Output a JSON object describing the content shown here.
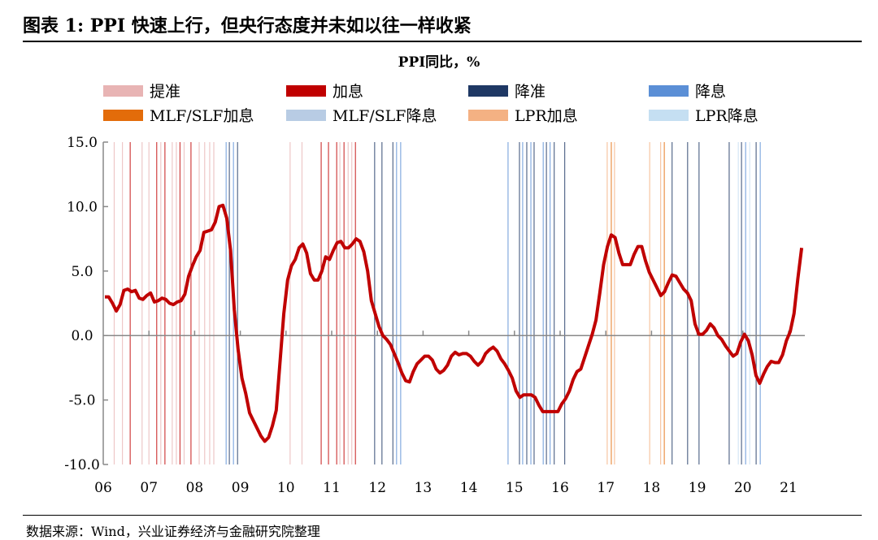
{
  "title": "图表 1:  PPI 快速上行，但央行态度并未如以往一样收紧",
  "source": "数据来源：Wind，兴业证券经济与金融研究院整理",
  "chart_data": {
    "type": "line",
    "title": "PPI同比，%",
    "xlabel": "",
    "ylabel": "",
    "ylim": [
      -10,
      15
    ],
    "yticks": [
      "15.0",
      "10.0",
      "5.0",
      "0.0",
      "-5.0",
      "-10.0"
    ],
    "ytick_values": [
      15,
      10,
      5,
      0,
      -5,
      -10
    ],
    "xticks": [
      "06",
      "07",
      "08",
      "09",
      "10",
      "11",
      "12",
      "13",
      "14",
      "15",
      "16",
      "17",
      "18",
      "19",
      "20",
      "21"
    ],
    "x_start": "2006-01",
    "series": [
      {
        "name": "PPI同比",
        "color": "#c00000",
        "values": [
          3.0,
          3.0,
          2.5,
          1.9,
          2.4,
          3.5,
          3.6,
          3.4,
          3.5,
          2.9,
          2.8,
          3.1,
          3.3,
          2.6,
          2.7,
          2.9,
          2.8,
          2.5,
          2.4,
          2.6,
          2.7,
          3.2,
          4.6,
          5.4,
          6.1,
          6.6,
          8.0,
          8.1,
          8.2,
          8.8,
          10.0,
          10.1,
          9.1,
          6.6,
          2.0,
          -1.1,
          -3.3,
          -4.5,
          -6.0,
          -6.6,
          -7.2,
          -7.8,
          -8.2,
          -7.9,
          -7.0,
          -5.8,
          -2.1,
          1.7,
          4.3,
          5.4,
          5.9,
          6.8,
          7.1,
          6.4,
          4.8,
          4.3,
          4.3,
          5.0,
          6.1,
          5.9,
          6.6,
          7.2,
          7.3,
          6.8,
          6.8,
          7.1,
          7.5,
          7.3,
          6.5,
          5.0,
          2.7,
          1.7,
          0.7,
          0.0,
          -0.3,
          -0.7,
          -1.4,
          -2.1,
          -2.9,
          -3.5,
          -3.6,
          -2.8,
          -2.2,
          -1.9,
          -1.6,
          -1.6,
          -1.9,
          -2.6,
          -2.9,
          -2.7,
          -2.3,
          -1.6,
          -1.3,
          -1.5,
          -1.4,
          -1.4,
          -1.6,
          -2.0,
          -2.3,
          -2.0,
          -1.4,
          -1.1,
          -0.9,
          -1.2,
          -1.8,
          -2.2,
          -2.7,
          -3.3,
          -4.3,
          -4.8,
          -4.6,
          -4.6,
          -4.6,
          -4.8,
          -5.4,
          -5.9,
          -5.9,
          -5.9,
          -5.9,
          -5.9,
          -5.3,
          -4.9,
          -4.3,
          -3.4,
          -2.8,
          -2.6,
          -1.7,
          -0.8,
          0.1,
          1.2,
          3.3,
          5.5,
          6.9,
          7.8,
          7.6,
          6.4,
          5.5,
          5.5,
          5.5,
          6.3,
          6.9,
          6.9,
          5.8,
          4.9,
          4.3,
          3.7,
          3.1,
          3.4,
          4.1,
          4.7,
          4.6,
          4.1,
          3.6,
          3.3,
          2.7,
          0.9,
          0.1,
          0.1,
          0.4,
          0.9,
          0.6,
          0.0,
          -0.3,
          -0.8,
          -1.2,
          -1.6,
          -1.4,
          -0.5,
          0.1,
          -0.4,
          -1.5,
          -3.1,
          -3.7,
          -3.0,
          -2.4,
          -2.0,
          -2.1,
          -2.1,
          -1.5,
          -0.4,
          0.3,
          1.7,
          4.4,
          6.8
        ]
      }
    ],
    "legend": [
      {
        "key": "rrr_up",
        "label": "提准",
        "color": "#e8b4b4"
      },
      {
        "key": "rate_up",
        "label": "加息",
        "color": "#c00000"
      },
      {
        "key": "rrr_down",
        "label": "降准",
        "color": "#1f3864"
      },
      {
        "key": "rate_down",
        "label": "降息",
        "color": "#5b8fd6"
      },
      {
        "key": "mlf_up",
        "label": "MLF/SLF加息",
        "color": "#e36c0a"
      },
      {
        "key": "mlf_down",
        "label": "MLF/SLF降息",
        "color": "#b8cce4"
      },
      {
        "key": "lpr_up",
        "label": "LPR加息",
        "color": "#f4b183"
      },
      {
        "key": "lpr_down",
        "label": "LPR降息",
        "color": "#c5dff2"
      }
    ],
    "events": [
      {
        "t": 2006.24,
        "k": "rrr_up"
      },
      {
        "t": 2006.42,
        "k": "rrr_up"
      },
      {
        "t": 2006.59,
        "k": "rate_up"
      },
      {
        "t": 2006.85,
        "k": "rrr_up"
      },
      {
        "t": 2007.0,
        "k": "rrr_up"
      },
      {
        "t": 2007.17,
        "k": "rate_up"
      },
      {
        "t": 2007.26,
        "k": "rrr_up"
      },
      {
        "t": 2007.35,
        "k": "rate_up"
      },
      {
        "t": 2007.51,
        "k": "rrr_up"
      },
      {
        "t": 2007.6,
        "k": "rrr_up"
      },
      {
        "t": 2007.68,
        "k": "rate_up"
      },
      {
        "t": 2007.77,
        "k": "rrr_up"
      },
      {
        "t": 2007.92,
        "k": "rate_up"
      },
      {
        "t": 2008.1,
        "k": "rrr_up"
      },
      {
        "t": 2008.22,
        "k": "rrr_up"
      },
      {
        "t": 2008.33,
        "k": "rrr_up"
      },
      {
        "t": 2008.42,
        "k": "rrr_up"
      },
      {
        "t": 2008.69,
        "k": "rate_down"
      },
      {
        "t": 2008.76,
        "k": "rrr_down"
      },
      {
        "t": 2008.85,
        "k": "rate_down"
      },
      {
        "t": 2008.94,
        "k": "rrr_down"
      },
      {
        "t": 2010.09,
        "k": "rrr_up"
      },
      {
        "t": 2010.35,
        "k": "rrr_up"
      },
      {
        "t": 2010.77,
        "k": "rate_up"
      },
      {
        "t": 2010.93,
        "k": "rate_up"
      },
      {
        "t": 2011.11,
        "k": "rate_up"
      },
      {
        "t": 2011.18,
        "k": "rrr_up"
      },
      {
        "t": 2011.27,
        "k": "rate_up"
      },
      {
        "t": 2011.36,
        "k": "rrr_up"
      },
      {
        "t": 2011.44,
        "k": "rrr_up"
      },
      {
        "t": 2011.52,
        "k": "rate_up"
      },
      {
        "t": 2011.94,
        "k": "rrr_down"
      },
      {
        "t": 2012.1,
        "k": "rrr_down"
      },
      {
        "t": 2012.34,
        "k": "rrr_down"
      },
      {
        "t": 2012.42,
        "k": "rate_down"
      },
      {
        "t": 2012.51,
        "k": "rate_down"
      },
      {
        "t": 2014.86,
        "k": "rate_down"
      },
      {
        "t": 2015.11,
        "k": "rrr_down"
      },
      {
        "t": 2015.18,
        "k": "rate_down"
      },
      {
        "t": 2015.27,
        "k": "rrr_down"
      },
      {
        "t": 2015.36,
        "k": "rate_down"
      },
      {
        "t": 2015.43,
        "k": "rrr_down"
      },
      {
        "t": 2015.63,
        "k": "rate_down"
      },
      {
        "t": 2015.7,
        "k": "rrr_down"
      },
      {
        "t": 2015.78,
        "k": "rate_down"
      },
      {
        "t": 2015.87,
        "k": "rrr_down"
      },
      {
        "t": 2016.1,
        "k": "rrr_down"
      },
      {
        "t": 2017.03,
        "k": "lpr_up"
      },
      {
        "t": 2017.12,
        "k": "mlf_up"
      },
      {
        "t": 2017.19,
        "k": "lpr_up"
      },
      {
        "t": 2017.96,
        "k": "lpr_up"
      },
      {
        "t": 2018.2,
        "k": "lpr_up"
      },
      {
        "t": 2018.28,
        "k": "mlf_up"
      },
      {
        "t": 2018.45,
        "k": "rrr_down"
      },
      {
        "t": 2018.79,
        "k": "rrr_down"
      },
      {
        "t": 2019.04,
        "k": "rrr_down"
      },
      {
        "t": 2019.7,
        "k": "rrr_down"
      },
      {
        "t": 2019.9,
        "k": "lpr_down"
      },
      {
        "t": 2019.97,
        "k": "rrr_down"
      },
      {
        "t": 2020.06,
        "k": "rate_down"
      },
      {
        "t": 2020.15,
        "k": "lpr_down"
      },
      {
        "t": 2020.29,
        "k": "rrr_down"
      },
      {
        "t": 2020.38,
        "k": "rate_down"
      }
    ]
  }
}
